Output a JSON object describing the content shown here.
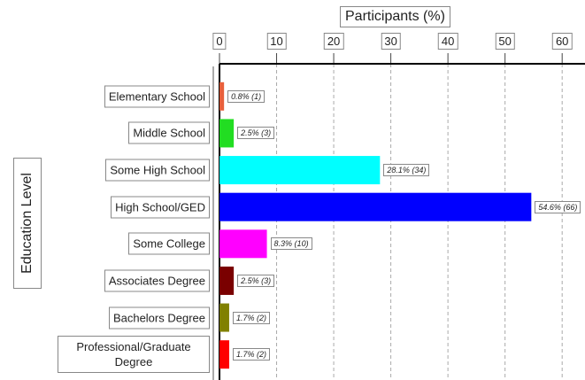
{
  "chart_data": {
    "type": "bar",
    "orientation": "horizontal",
    "xlabel": "Participants (%)",
    "ylabel": "Education Level",
    "categories": [
      "Elementary School",
      "Middle School",
      "Some High School",
      "High School/GED",
      "Some College",
      "Associates Degree",
      "Bachelors Degree",
      "Professional/Graduate Degree"
    ],
    "values": [
      0.8,
      2.5,
      28.1,
      54.6,
      8.3,
      2.5,
      1.7,
      1.7
    ],
    "value_labels": [
      "0.8% (1)",
      "2.5% (3)",
      "28.1% (34)",
      "54.6% (66)",
      "8.3% (10)",
      "2.5% (3)",
      "1.7% (2)",
      "1.7% (2)"
    ],
    "colors": [
      "#e8603c",
      "#22dd22",
      "#00ffff",
      "#0000ff",
      "#ff00ff",
      "#7a0000",
      "#808000",
      "#ff0000"
    ],
    "xlim": [
      0,
      64
    ],
    "xticks": [
      0,
      10,
      20,
      30,
      40,
      50,
      60
    ],
    "grid": true
  }
}
